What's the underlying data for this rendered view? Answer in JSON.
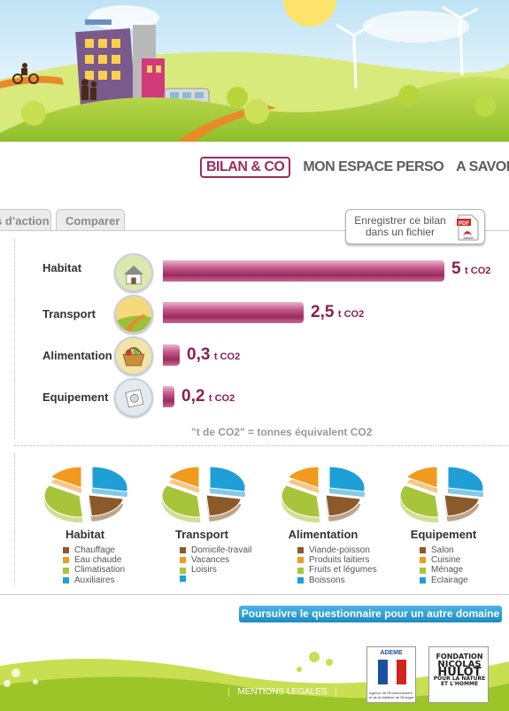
{
  "nav": {
    "items": [
      {
        "label": "BILAN & CO",
        "active": true
      },
      {
        "label": "MON ESPACE PERSO",
        "active": false
      },
      {
        "label": "A SAVOIR",
        "active": false
      }
    ]
  },
  "tabs": {
    "left_label": "s d’action",
    "right_label": "Comparer"
  },
  "save_button": {
    "label": "Enregistrer ce bilan dans un fichier",
    "pdf_badge": "PDF",
    "pdf_brand": "Adobe"
  },
  "bilan": {
    "max_value": 5,
    "rows": [
      {
        "label": "Habitat",
        "value": 5,
        "value_text": "5",
        "unit": "t CO2",
        "icon": "house-icon"
      },
      {
        "label": "Transport",
        "value": 2.5,
        "value_text": "2,5",
        "unit": "t CO2",
        "icon": "road-icon"
      },
      {
        "label": "Alimentation",
        "value": 0.3,
        "value_text": "0,3",
        "unit": "t CO2",
        "icon": "basket-icon"
      },
      {
        "label": "Equipement",
        "value": 0.2,
        "value_text": "0,2",
        "unit": "t CO2",
        "icon": "appliance-icon"
      }
    ],
    "footnote": "\"t de CO2\" = tonnes équivalent CO2"
  },
  "domains": [
    {
      "title": "Habitat",
      "legend": [
        "Chauffage",
        "Eau chaude",
        "Climatisation",
        "Auxiliaires"
      ]
    },
    {
      "title": "Transport",
      "legend": [
        "Domicile-travail",
        "Vacances",
        "Loisirs",
        ""
      ]
    },
    {
      "title": "Alimentation",
      "legend": [
        "Viande-poisson",
        "Produits laitiers",
        "Fruits et légumes",
        "Boissons"
      ]
    },
    {
      "title": "Equipement",
      "legend": [
        "Salon",
        "Cuisine",
        "Ménage",
        "Eclairage"
      ]
    }
  ],
  "legend_colors": [
    "#8b5a2b",
    "#f29a1e",
    "#a8c43a",
    "#1e9fd6"
  ],
  "accent_color": "#9e2b5e",
  "continue_button": {
    "label": "Poursuivre le questionnaire pour un autre domaine"
  },
  "footer": {
    "mentions": "MENTIONS LEGALES",
    "ademe_logo": "ADEME",
    "ademe_subtitle": "Agence de l'Environnement et de la Maîtrise de l'Energie",
    "fnh_logo_lines": [
      "FONDATION",
      "NICOLAS",
      "HULOT",
      "POUR LA NATURE ET L'HOMME"
    ]
  }
}
